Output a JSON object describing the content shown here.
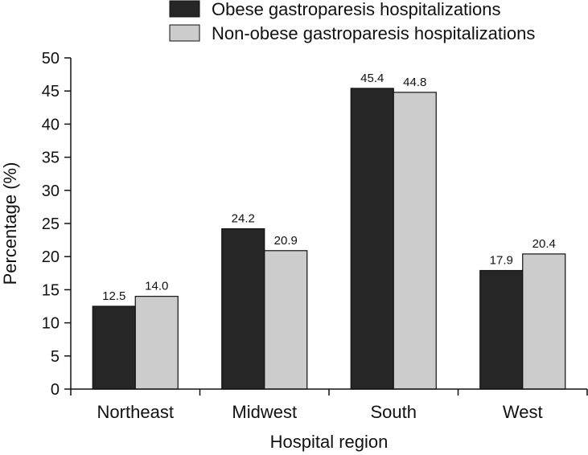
{
  "chart_data": {
    "type": "bar",
    "title": "",
    "xlabel": "Hospital region",
    "ylabel": "Percentage (%)",
    "ylim": [
      0,
      50
    ],
    "yticks": [
      0,
      5,
      10,
      15,
      20,
      25,
      30,
      35,
      40,
      45,
      50
    ],
    "categories": [
      "Northeast",
      "Midwest",
      "South",
      "West"
    ],
    "series": [
      {
        "name": "Obese gastroparesis hospitalizations",
        "values": [
          12.5,
          24.2,
          45.4,
          17.9
        ],
        "color": "#262626"
      },
      {
        "name": "Non-obese gastroparesis hospitalizations",
        "values": [
          14.0,
          20.9,
          44.8,
          20.4
        ],
        "color": "#cccccc"
      }
    ],
    "data_labels": [
      [
        "12.5",
        "24.2",
        "45.4",
        "17.9"
      ],
      [
        "14.0",
        "20.9",
        "44.8",
        "20.4"
      ]
    ],
    "legend_position": "top-right",
    "grid": false
  }
}
